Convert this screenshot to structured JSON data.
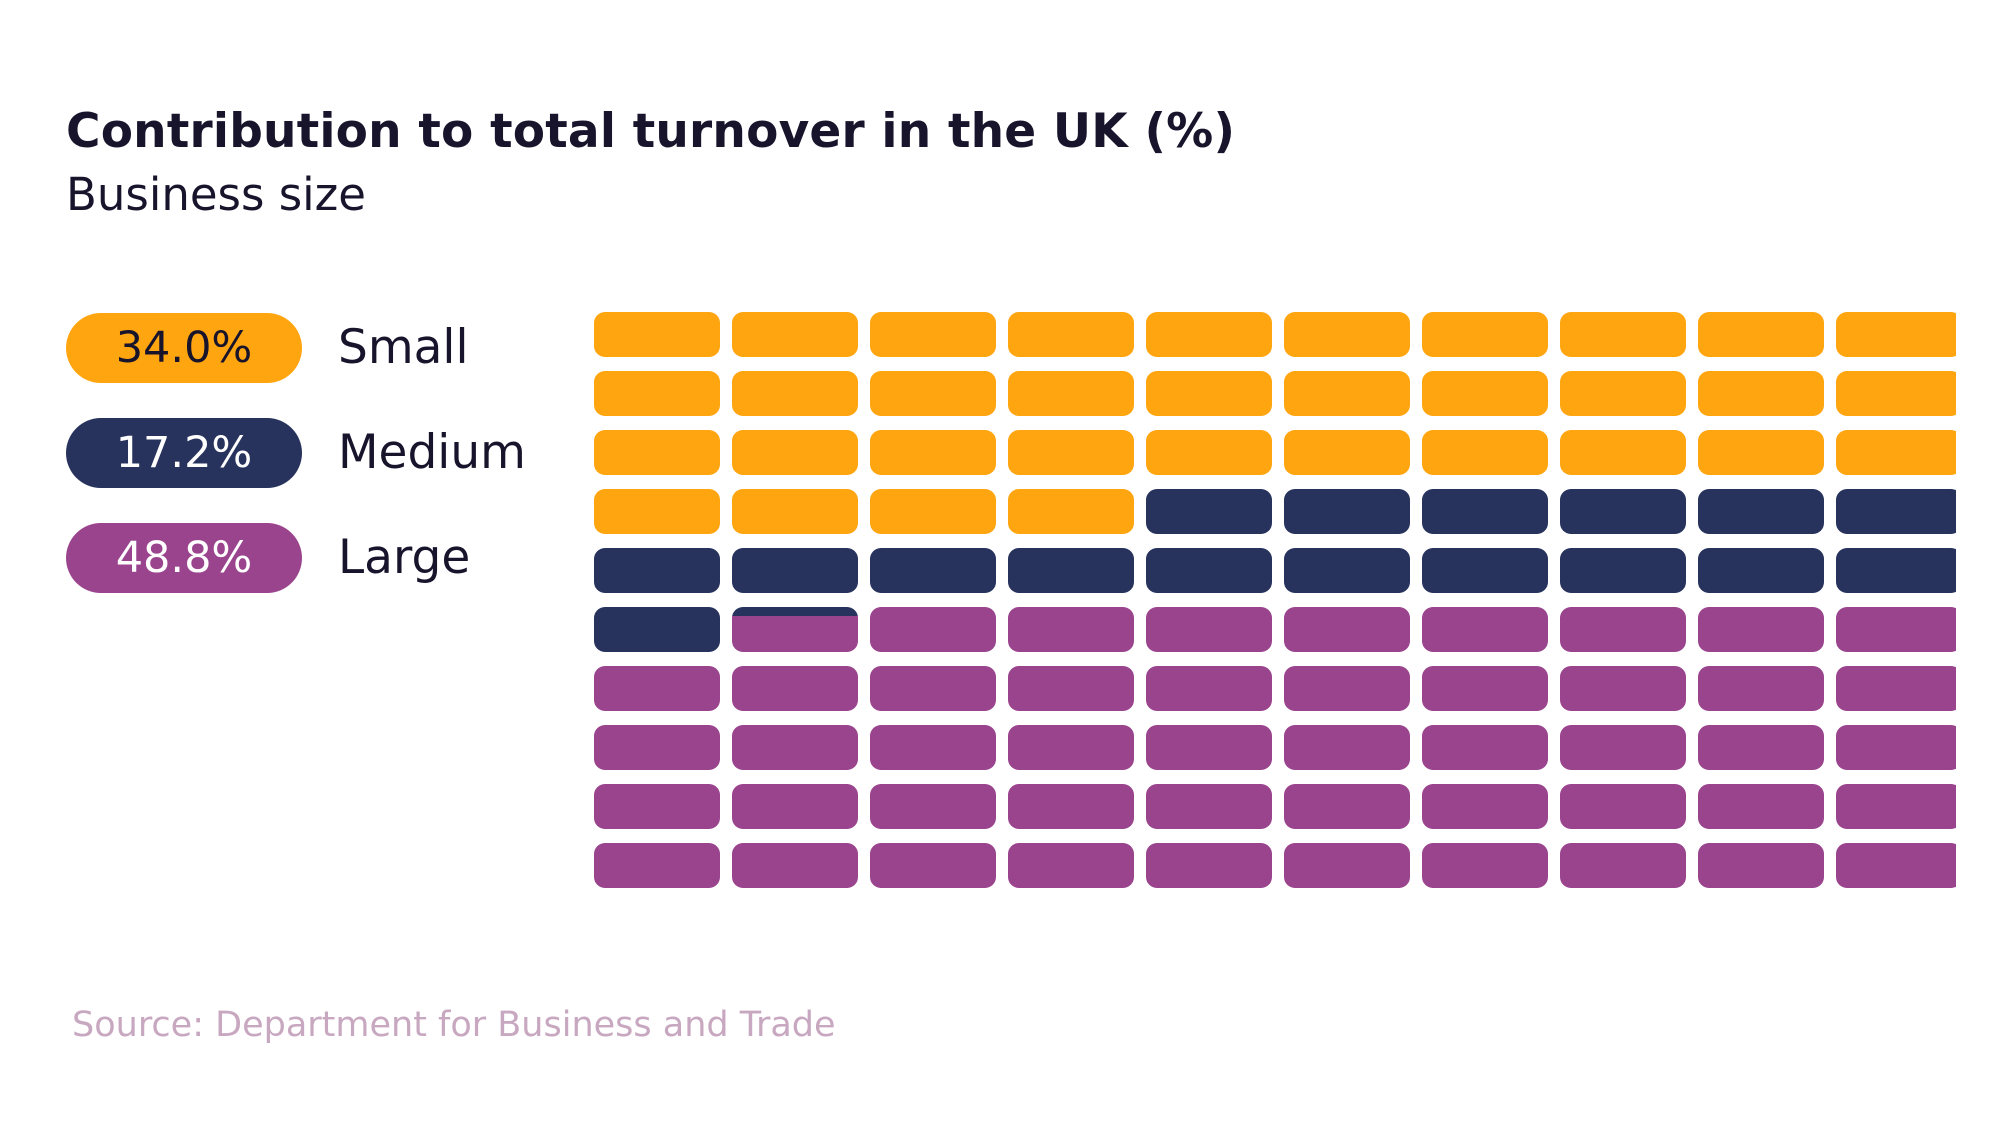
{
  "header": {
    "title": "Contribution to total turnover in the UK (%)",
    "subtitle": "Business size"
  },
  "legend": {
    "items": [
      {
        "value_label": "34.0%",
        "label": "Small",
        "color": "#FFA50F"
      },
      {
        "value_label": "17.2%",
        "label": "Medium",
        "color": "#27335C"
      },
      {
        "value_label": "48.8%",
        "label": "Large",
        "color": "#9B448E"
      }
    ]
  },
  "chart_data": {
    "type": "waffle",
    "title": "Contribution to total turnover in the UK (%)",
    "subtitle": "Business size",
    "grid": {
      "rows": 10,
      "columns": 10,
      "total": 100
    },
    "categories": [
      "Small",
      "Medium",
      "Large"
    ],
    "values": [
      34.0,
      17.2,
      48.8
    ],
    "unit": "%",
    "colors": [
      "#FFA50F",
      "#27335C",
      "#9B448E"
    ]
  },
  "footer": {
    "source": "Source: Department for Business and Trade"
  }
}
